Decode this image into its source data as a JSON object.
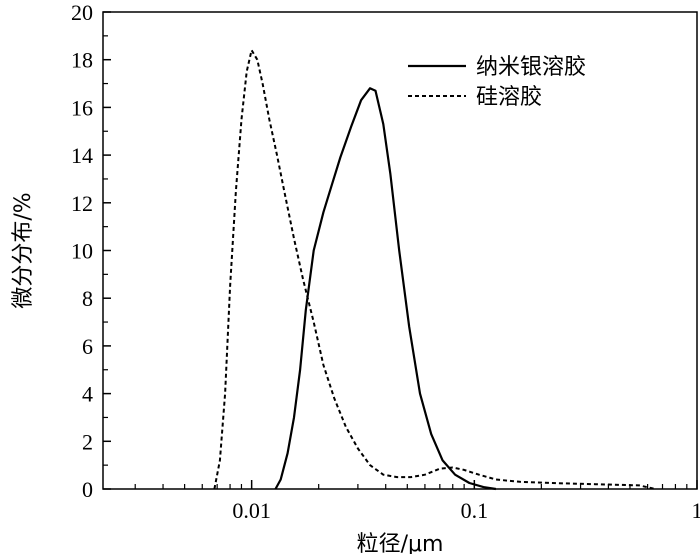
{
  "chart_data": {
    "type": "line",
    "title": "",
    "xlabel": "粒径/μm",
    "ylabel": "微分分布/%",
    "xscale": "log",
    "xlim": [
      0.00215,
      1
    ],
    "ylim": [
      0,
      20
    ],
    "yticks": [
      0,
      2,
      4,
      6,
      8,
      10,
      12,
      14,
      16,
      18,
      20
    ],
    "ytick_labels": [
      "0",
      "2",
      "4",
      "6",
      "8",
      "10",
      "12",
      "14",
      "16",
      "18",
      "20"
    ],
    "xticks": [
      0.01,
      0.1,
      1
    ],
    "xtick_labels": [
      "0.01",
      "0.1",
      "1"
    ],
    "grid": false,
    "legend_position": "top-right",
    "series": [
      {
        "name": "纳米银溶胶",
        "style": "solid",
        "x": [
          0.0128,
          0.0135,
          0.0145,
          0.0155,
          0.0165,
          0.0175,
          0.019,
          0.021,
          0.023,
          0.025,
          0.028,
          0.031,
          0.034,
          0.036,
          0.039,
          0.042,
          0.046,
          0.051,
          0.057,
          0.064,
          0.072,
          0.082,
          0.095,
          0.11,
          0.125
        ],
        "y": [
          0,
          0.4,
          1.5,
          3.0,
          5.0,
          7.5,
          10.0,
          11.6,
          12.8,
          13.9,
          15.2,
          16.3,
          16.8,
          16.7,
          15.3,
          13.2,
          10.0,
          6.8,
          4.0,
          2.3,
          1.2,
          0.6,
          0.25,
          0.08,
          0
        ]
      },
      {
        "name": "硅溶胶",
        "style": "dashed",
        "x": [
          0.0068,
          0.0072,
          0.0076,
          0.008,
          0.0085,
          0.009,
          0.0095,
          0.01,
          0.0106,
          0.0112,
          0.012,
          0.013,
          0.014,
          0.0155,
          0.017,
          0.019,
          0.021,
          0.0235,
          0.0265,
          0.03,
          0.034,
          0.039,
          0.045,
          0.052,
          0.06,
          0.07,
          0.08,
          0.09,
          0.105,
          0.125,
          0.16,
          0.22,
          0.35,
          0.55,
          0.65
        ],
        "y": [
          0,
          1.2,
          4.0,
          8.5,
          12.5,
          15.5,
          17.5,
          18.4,
          18.0,
          17.0,
          15.5,
          14.0,
          12.5,
          10.5,
          8.8,
          7.0,
          5.2,
          3.8,
          2.6,
          1.7,
          1.0,
          0.6,
          0.5,
          0.5,
          0.6,
          0.85,
          0.9,
          0.8,
          0.6,
          0.4,
          0.3,
          0.25,
          0.2,
          0.15,
          0
        ]
      }
    ]
  }
}
